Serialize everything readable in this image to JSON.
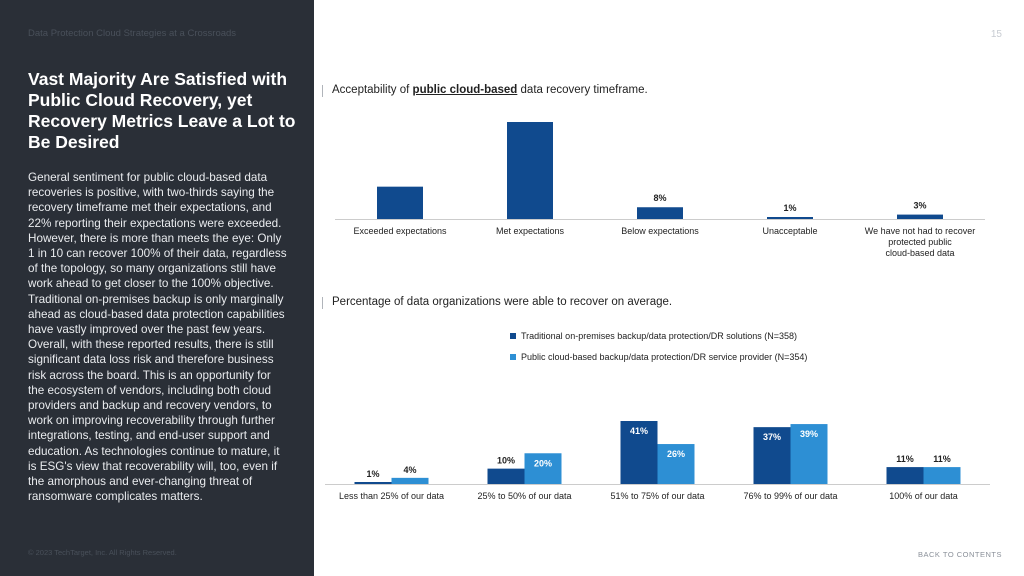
{
  "sidebar": {
    "doc_title": "Data Protection Cloud Strategies at a Crossroads",
    "headline": "Vast Majority Are Satisfied with Public Cloud Recovery, yet Recovery Metrics Leave a Lot to Be Desired",
    "body": "General sentiment for public cloud-based data recoveries is positive, with two-thirds saying the recovery timeframe met their expectations, and 22% reporting their expectations were exceeded. However, there is more than meets the eye: Only 1 in 10 can recover 100% of their data, regardless of the topology, so many organizations still have work ahead to get closer to the 100% objective. Traditional on-premises backup is only marginally ahead as cloud-based data protection capabilities have vastly improved over the past few years. Overall, with these reported results, there is still significant data loss risk and therefore business risk across the board. This is an opportunity for the ecosystem of vendors, including both cloud providers and backup and recovery vendors, to work on improving recoverability through further integrations, testing, and end-user support and education. As technologies continue to mature, it is ESG's view that recoverability will, too, even if the amorphous and ever-changing threat of ransomware complicates matters.",
    "copyright": "© 2023 TechTarget, Inc. All Rights Reserved."
  },
  "page_number": "15",
  "back_to_contents": "BACK TO CONTENTS",
  "colors": {
    "dark_blue": "#104a8e",
    "light_blue": "#2d8fd4",
    "sidebar_bg": "#2a2f37"
  },
  "chart_data": [
    {
      "type": "bar",
      "title_prefix": "Acceptability of ",
      "title_emphasis": "public cloud-based",
      "title_suffix": " data recovery timeframe.",
      "categories": [
        "Exceeded expectations",
        "Met expectations",
        "Below expectations",
        "Unacceptable",
        "We have not had to recover protected public cloud-based data"
      ],
      "values": [
        22,
        66,
        8,
        1,
        3
      ],
      "labels": [
        "",
        "",
        "8%",
        "1%",
        "3%"
      ],
      "color": "#104a8e",
      "ylim": [
        0,
        66
      ]
    },
    {
      "type": "bar",
      "title": "Percentage of data organizations were able to recover on average.",
      "categories": [
        "Less than 25% of our data",
        "25% to 50% of our data",
        "51% to 75% of our data",
        "76% to 99% of our data",
        "100% of our data"
      ],
      "series": [
        {
          "name": "Traditional on-premises backup/data protection/DR solutions (N=358)",
          "values": [
            1,
            10,
            41,
            37,
            11
          ],
          "labels": [
            "1%",
            "10%",
            "41%",
            "37%",
            "11%"
          ],
          "color": "#104a8e"
        },
        {
          "name": "Public cloud-based backup/data protection/DR service provider (N=354)",
          "values": [
            4,
            20,
            26,
            39,
            11
          ],
          "labels": [
            "4%",
            "20%",
            "26%",
            "39%",
            "11%"
          ],
          "color": "#2d8fd4"
        }
      ],
      "legend": "top",
      "ylim": [
        0,
        41
      ]
    }
  ]
}
